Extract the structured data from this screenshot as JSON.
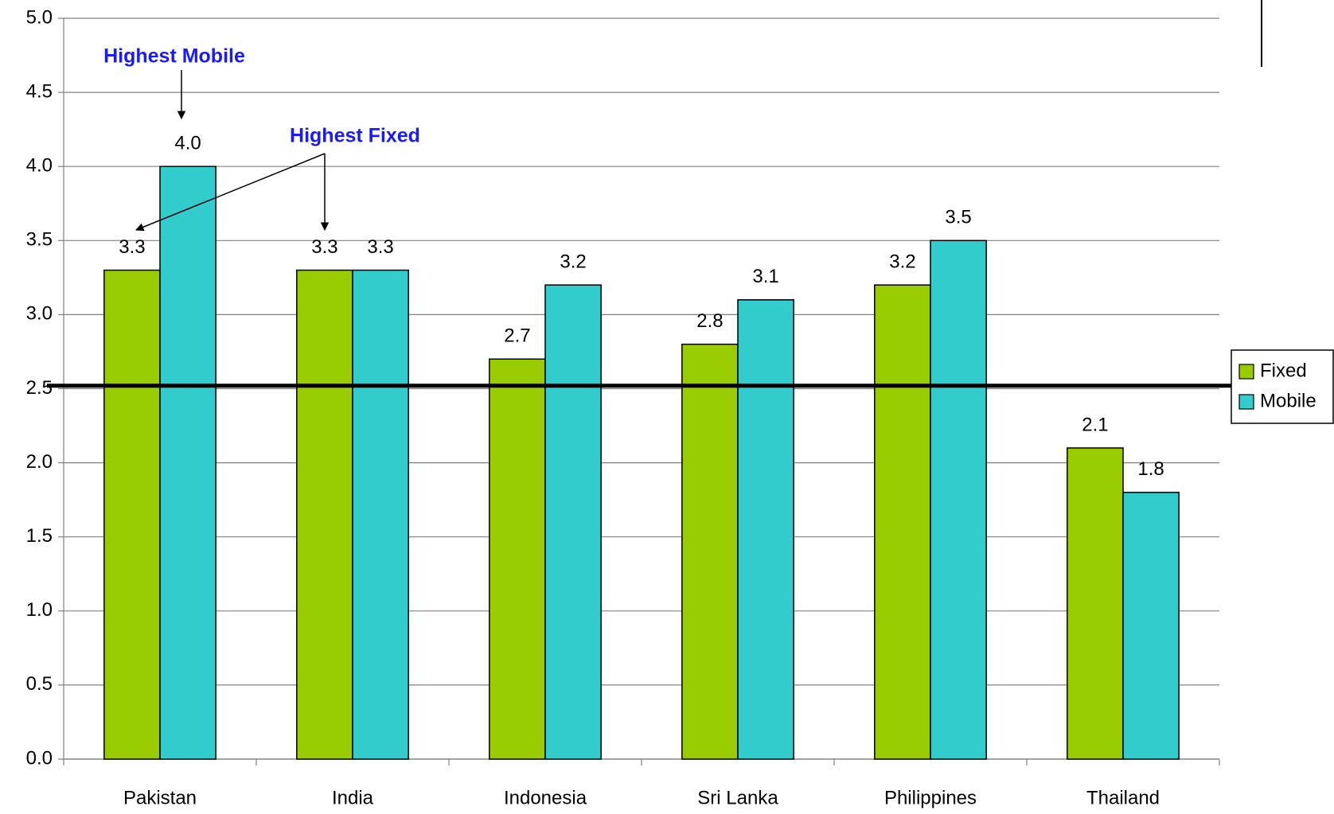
{
  "chart_data": {
    "type": "bar",
    "categories": [
      "Pakistan",
      "India",
      "Indonesia",
      "Sri Lanka",
      "Philippines",
      "Thailand"
    ],
    "series": [
      {
        "name": "Fixed",
        "color": "#99cc00",
        "values": [
          3.3,
          3.3,
          2.7,
          2.8,
          3.2,
          2.1
        ],
        "value_labels": [
          "3.3",
          "3.3",
          "2.7",
          "2.8",
          "3.2",
          "2.1"
        ]
      },
      {
        "name": "Mobile",
        "color": "#33cccc",
        "values": [
          4.0,
          3.3,
          3.2,
          3.1,
          3.5,
          1.8
        ],
        "value_labels": [
          "4.0",
          "3.3",
          "3.2",
          "3.1",
          "3.5",
          "1.8"
        ]
      }
    ],
    "ylim": [
      0,
      5
    ],
    "yticks": [
      {
        "value": 0,
        "label": "0.0"
      },
      0.5,
      {
        "value": 1,
        "label": "1.0"
      },
      1.5,
      {
        "value": 2,
        "label": "2.0"
      },
      2.5,
      {
        "value": 3,
        "label": "3.0"
      },
      3.5,
      {
        "value": 4,
        "label": "4.0"
      },
      4.5,
      {
        "value": 5,
        "label": "5.0"
      }
    ],
    "grid": true,
    "reference_line": 2.52,
    "legend": "right",
    "annotations": [
      "Highest Mobile",
      "Highest Fixed"
    ]
  }
}
